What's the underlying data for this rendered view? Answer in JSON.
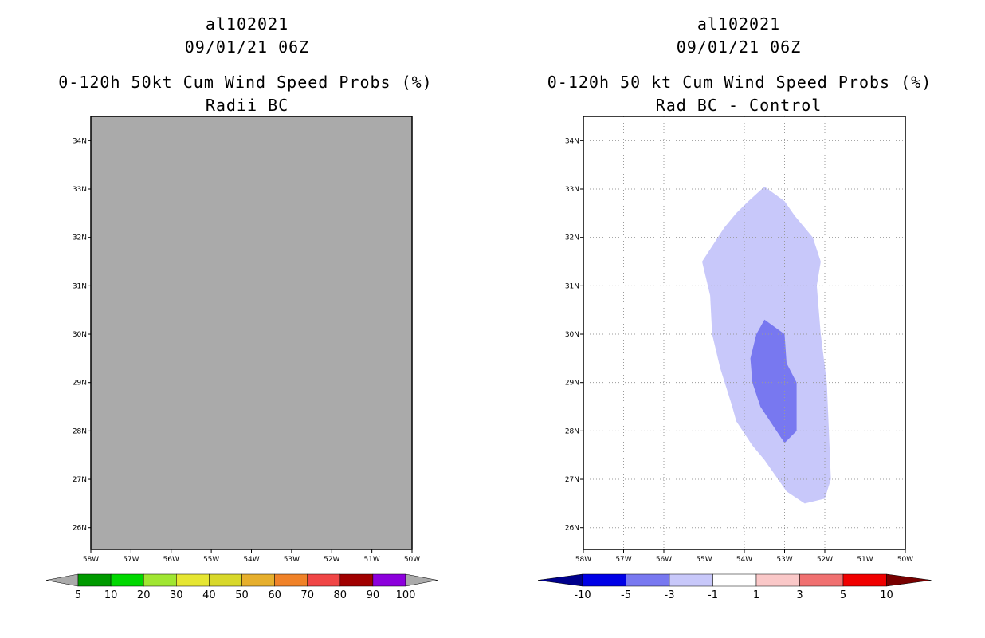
{
  "left_panel": {
    "storm_id": "al102021",
    "datetime": "09/01/21 06Z",
    "title": "0-120h 50kt Cum Wind Speed Probs (%)",
    "subtitle": "Radii BC",
    "fill_color": "#aaaaaa"
  },
  "right_panel": {
    "storm_id": "al102021",
    "datetime": "09/01/21 06Z",
    "title": "0-120h 50 kt Cum Wind Speed Probs (%)",
    "subtitle": "Rad BC - Control"
  },
  "chart_data": [
    {
      "type": "heatmap",
      "title": "0-120h 50kt Cum Wind Speed Probs (%)",
      "subtitle": "Radii BC",
      "xlim": [
        -58,
        -50
      ],
      "ylim": [
        25.55,
        34.5
      ],
      "x_ticks": [
        -58,
        -57,
        -56,
        -55,
        -54,
        -53,
        -52,
        -51,
        -50
      ],
      "x_tick_labels": [
        "58W",
        "57W",
        "56W",
        "55W",
        "54W",
        "53W",
        "52W",
        "51W",
        "50W"
      ],
      "y_ticks": [
        26,
        27,
        28,
        29,
        30,
        31,
        32,
        33,
        34
      ],
      "y_tick_labels": [
        "26N",
        "27N",
        "28N",
        "29N",
        "30N",
        "31N",
        "32N",
        "33N",
        "34N"
      ],
      "grid": false,
      "field": "uniform undefined (gray) over entire domain",
      "colorbar": {
        "labels": [
          "5",
          "10",
          "20",
          "30",
          "40",
          "50",
          "60",
          "70",
          "80",
          "90",
          "100"
        ],
        "colors": [
          "#009a00",
          "#00d800",
          "#a0e632",
          "#e6e632",
          "#d8d82a",
          "#e6af2d",
          "#f08228",
          "#f04646",
          "#a00000",
          "#8c00dc"
        ],
        "under_color": "#aaaaaa",
        "over_color": "#aaaaaa"
      }
    },
    {
      "type": "heatmap",
      "title": "0-120h 50 kt Cum Wind Speed Probs (%)",
      "subtitle": "Rad BC - Control",
      "xlim": [
        -58,
        -50
      ],
      "ylim": [
        25.55,
        34.5
      ],
      "x_ticks": [
        -58,
        -57,
        -56,
        -55,
        -54,
        -53,
        -52,
        -51,
        -50
      ],
      "x_tick_labels": [
        "58W",
        "57W",
        "56W",
        "55W",
        "54W",
        "53W",
        "52W",
        "51W",
        "50W"
      ],
      "y_ticks": [
        26,
        27,
        28,
        29,
        30,
        31,
        32,
        33,
        34
      ],
      "y_tick_labels": [
        "26N",
        "27N",
        "28N",
        "29N",
        "30N",
        "31N",
        "32N",
        "33N",
        "34N"
      ],
      "grid": true,
      "contours": [
        {
          "range": "-3 to -1",
          "color": "#c8c8fa",
          "points": [
            [
              -53.5,
              33.05
            ],
            [
              -53.0,
              32.75
            ],
            [
              -52.75,
              32.45
            ],
            [
              -52.3,
              32.0
            ],
            [
              -52.1,
              31.5
            ],
            [
              -52.2,
              31.0
            ],
            [
              -52.1,
              30.0
            ],
            [
              -51.95,
              29.0
            ],
            [
              -51.9,
              28.0
            ],
            [
              -51.85,
              27.0
            ],
            [
              -52.0,
              26.6
            ],
            [
              -52.5,
              26.5
            ],
            [
              -52.95,
              26.75
            ],
            [
              -53.5,
              27.4
            ],
            [
              -53.8,
              27.7
            ],
            [
              -54.2,
              28.2
            ],
            [
              -54.3,
              28.5
            ],
            [
              -54.6,
              29.3
            ],
            [
              -54.8,
              30.0
            ],
            [
              -54.85,
              30.8
            ],
            [
              -55.05,
              31.5
            ],
            [
              -54.5,
              32.2
            ],
            [
              -54.2,
              32.5
            ],
            [
              -53.9,
              32.75
            ],
            [
              -53.5,
              33.05
            ]
          ]
        },
        {
          "range": "-5 to -3",
          "color": "#7878f0",
          "points": [
            [
              -53.5,
              30.3
            ],
            [
              -53.0,
              30.0
            ],
            [
              -52.95,
              29.4
            ],
            [
              -52.7,
              29.0
            ],
            [
              -52.7,
              28.0
            ],
            [
              -53.0,
              27.75
            ],
            [
              -53.2,
              28.0
            ],
            [
              -53.6,
              28.5
            ],
            [
              -53.8,
              29.0
            ],
            [
              -53.85,
              29.5
            ],
            [
              -53.7,
              30.0
            ],
            [
              -53.5,
              30.3
            ]
          ]
        }
      ],
      "colorbar": {
        "labels": [
          "-10",
          "-5",
          "-3",
          "-1",
          "1",
          "3",
          "5",
          "10"
        ],
        "colors": [
          "#0000e6",
          "#7878f0",
          "#c8c8fa",
          "#ffffff",
          "#fac8c8",
          "#f07070",
          "#f00000"
        ],
        "under_color": "#00008c",
        "over_color": "#780000"
      }
    }
  ]
}
